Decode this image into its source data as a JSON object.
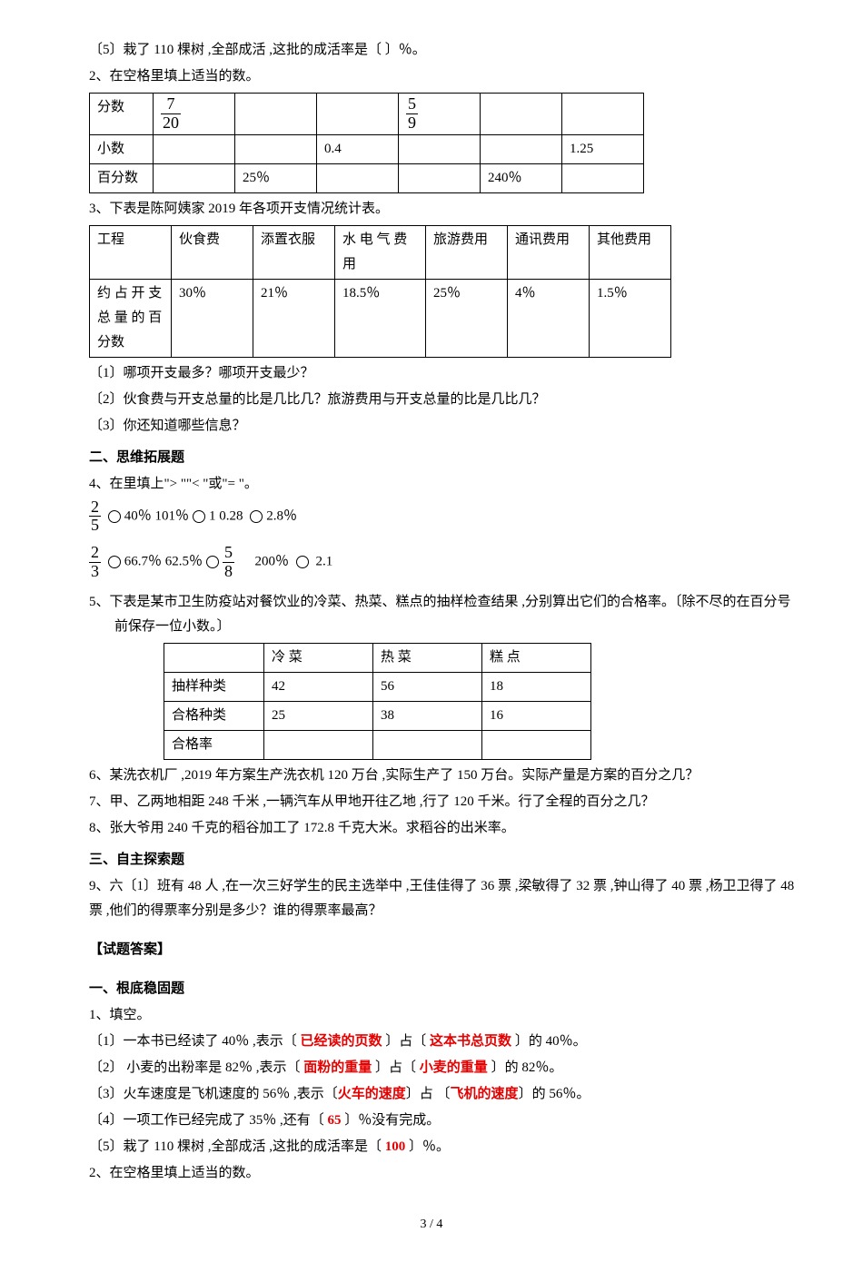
{
  "q1_5": "〔5〕栽了 110 棵树 ,全部成活 ,这批的成活率是〔    〕％。",
  "q2_title": "2、在空格里填上适当的数。",
  "table1": {
    "cols_width": [
      "70px",
      "90px",
      "90px",
      "90px",
      "90px",
      "90px",
      "90px"
    ],
    "rows": [
      [
        "分数",
        "frac:7/20",
        "",
        "",
        "frac:5/9",
        "",
        ""
      ],
      [
        "小数",
        "",
        "",
        "0.4",
        "",
        "",
        "1.25"
      ],
      [
        "百分数",
        "",
        "25％",
        "",
        "",
        "240％",
        ""
      ]
    ]
  },
  "q3_title": "3、下表是陈阿姨家 2019 年各项开支情况统计表。",
  "table2": {
    "cols_width": [
      "90px",
      "90px",
      "90px",
      "100px",
      "90px",
      "90px",
      "90px"
    ],
    "header": [
      "工程",
      "伙食费",
      "添置衣服",
      "水 电 气 费用",
      "旅游费用",
      "通讯费用",
      "其他费用"
    ],
    "row_label": "约 占 开 支总 量 的 百分数",
    "values": [
      "30％",
      "21％",
      "18.5％",
      "25％",
      "4％",
      "1.5％"
    ]
  },
  "q3_sub1": "〔1〕哪项开支最多？哪项开支最少？",
  "q3_sub2": "〔2〕伙食费与开支总量的比是几比几？旅游费用与开支总量的比是几比几？",
  "q3_sub3": "〔3〕你还知道哪些信息？",
  "sect2": "二、思维拓展题",
  "q4_title": "4、在里填上\"> \"\"< \"或\"= \"。",
  "q4_line1_a": "40％    101％",
  "q4_line1_b": "1     0.28",
  "q4_line1_c": "2.8％",
  "q4_line2_a": "66.7％   62.5％",
  "q4_line2_b": "200％",
  "q4_line2_c": "2.1",
  "q5_title": "5、下表是某市卫生防疫站对餐饮业的冷菜、热菜、糕点的抽样检查结果 ,分别算出它们的合格率。〔除不尽的在百分号前保存一位小数。〕",
  "table3": {
    "cols_width": [
      "110px",
      "120px",
      "120px",
      "120px"
    ],
    "header": [
      "",
      "冷  菜",
      "热  菜",
      "糕  点"
    ],
    "rows": [
      [
        "抽样种类",
        "42",
        "56",
        "18"
      ],
      [
        "合格种类",
        "25",
        "38",
        "16"
      ],
      [
        "合格率",
        "",
        "",
        ""
      ]
    ]
  },
  "q6": "6、某洗衣机厂 ,2019 年方案生产洗衣机 120 万台 ,实际生产了 150 万台。实际产量是方案的百分之几？",
  "q7": "7、甲、乙两地相距 248 千米 ,一辆汽车从甲地开往乙地 ,行了 120 千米。行了全程的百分之几？",
  "q8": "8、张大爷用 240 千克的稻谷加工了 172.8 千克大米。求稻谷的出米率。",
  "sect3": "三、自主探索题",
  "q9": "9、六〔1〕班有 48 人 ,在一次三好学生的民主选举中 ,王佳佳得了 36 票 ,梁敏得了 32 票 ,钟山得了 40 票 ,杨卫卫得了 48 票 ,他们的得票率分别是多少？谁的得票率最高？",
  "answers_heading": "【试题答案】",
  "ans_sect1": "一、根底稳固题",
  "ans_q1": "1、填空。",
  "ans1_1_a": "〔1〕一本书已经读了 40％ ,表示〔 ",
  "ans1_1_r1": "已经读的页数",
  "ans1_1_b": " 〕占〔 ",
  "ans1_1_r2": "这本书总页数",
  "ans1_1_c": " 〕的 40％。",
  "ans1_2_a": "〔2〕 小麦的出粉率是 82％ ,表示〔  ",
  "ans1_2_r1": "面粉的重量",
  "ans1_2_b": "  〕占〔  ",
  "ans1_2_r2": "小麦的重量",
  "ans1_2_c": "  〕的 82％。",
  "ans1_3_a": "〔3〕火车速度是飞机速度的 56％ ,表示〔",
  "ans1_3_r1": "火车的速度",
  "ans1_3_b": "〕占  〔",
  "ans1_3_r2": "飞机的速度",
  "ans1_3_c": "〕的 56％。",
  "ans1_4_a": "〔4〕一项工作已经完成了 35％ ,还有〔  ",
  "ans1_4_r1": "65",
  "ans1_4_b": "  〕％没有完成。",
  "ans1_5_a": "〔5〕栽了 110 棵树 ,全部成活 ,这批的成活率是〔  ",
  "ans1_5_r1": "100",
  "ans1_5_b": "  〕％。",
  "ans_q2": "2、在空格里填上适当的数。",
  "pagenum": "3 / 4"
}
